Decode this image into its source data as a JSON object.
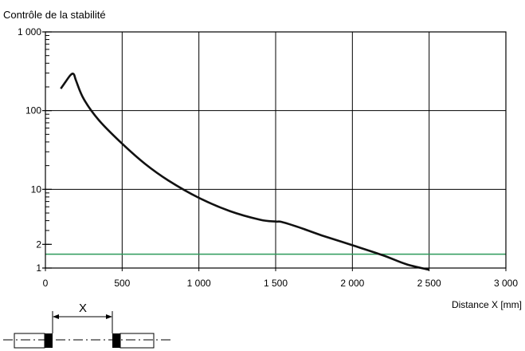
{
  "chart_data": {
    "type": "line",
    "title": "Contrôle de la stabilité",
    "xlabel": "Distance X [mm]",
    "ylabel": "",
    "xlim": [
      0,
      3000
    ],
    "ylim": [
      1,
      1000
    ],
    "y_scale": "log",
    "grid": true,
    "x_ticks": [
      0,
      500,
      1000,
      1500,
      2000,
      2500,
      3000
    ],
    "x_tick_labels": [
      "0",
      "500",
      "1 000",
      "1 500",
      "2 000",
      "2 500",
      "3 000"
    ],
    "y_ticks": [
      1,
      2,
      10,
      100,
      1000
    ],
    "y_tick_labels": [
      "1",
      "2",
      "10",
      "100",
      "1 000"
    ],
    "series": [
      {
        "color": "#111111",
        "x": [
          100,
          130,
          165,
          185,
          200,
          250,
          350,
          500,
          650,
          800,
          1000,
          1200,
          1400,
          1500,
          1540,
          1650,
          1800,
          2000,
          2200,
          2350,
          2500
        ],
        "y": [
          190,
          230,
          285,
          290,
          240,
          140,
          75,
          38,
          21,
          13,
          7.8,
          5.3,
          4.1,
          3.9,
          3.85,
          3.3,
          2.6,
          1.95,
          1.45,
          1.12,
          0.95
        ]
      }
    ],
    "threshold_line": {
      "y": 1.5,
      "color": "#2e9a5a"
    }
  },
  "diagram": {
    "label": "X"
  }
}
